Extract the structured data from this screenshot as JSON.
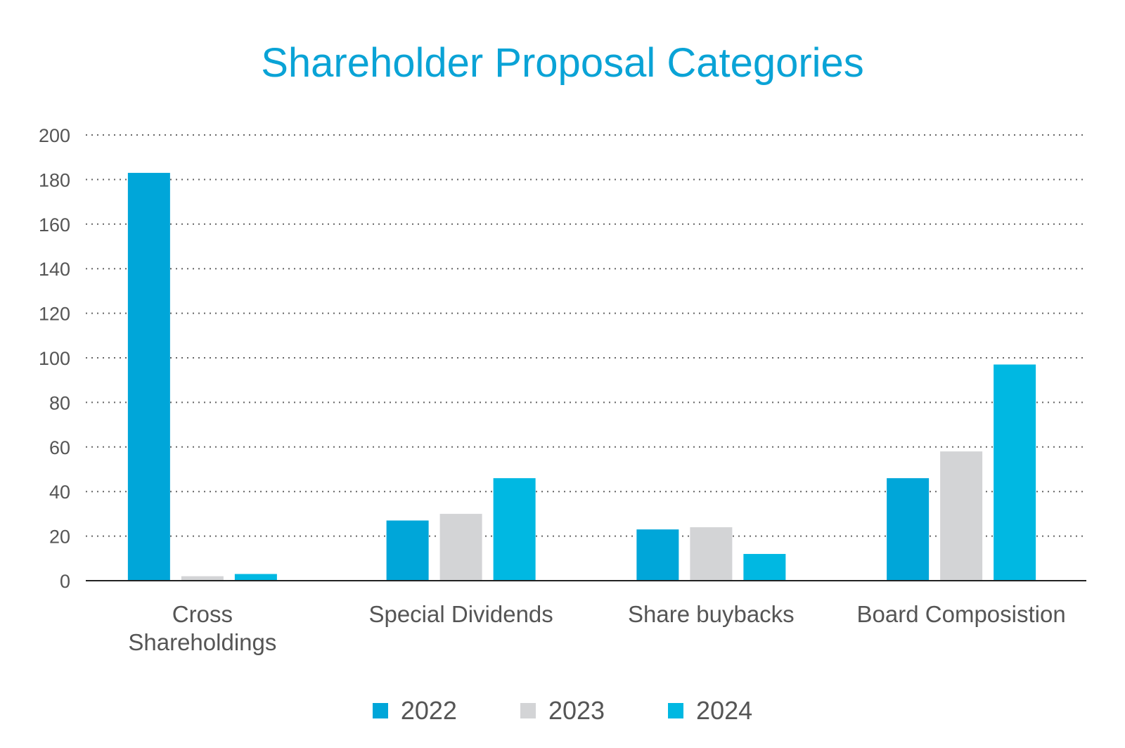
{
  "chart_data": {
    "type": "bar",
    "title": "Shareholder Proposal Categories",
    "xlabel": "",
    "ylabel": "",
    "ylim": [
      0,
      200
    ],
    "yticks": [
      0,
      20,
      40,
      60,
      80,
      100,
      120,
      140,
      160,
      180,
      200
    ],
    "grid": true,
    "legend_position": "bottom",
    "categories": [
      [
        "Cross",
        "Shareholdings"
      ],
      [
        "Special Dividends"
      ],
      [
        "Share buybacks"
      ],
      [
        "Board Composistion"
      ]
    ],
    "series": [
      {
        "name": "2022",
        "color": "#00a6d9",
        "values": [
          183,
          27,
          23,
          46
        ]
      },
      {
        "name": "2023",
        "color": "#d3d4d6",
        "values": [
          2,
          30,
          24,
          58
        ]
      },
      {
        "name": "2024",
        "color": "#00b8e2",
        "values": [
          3,
          46,
          12,
          97
        ]
      }
    ]
  }
}
